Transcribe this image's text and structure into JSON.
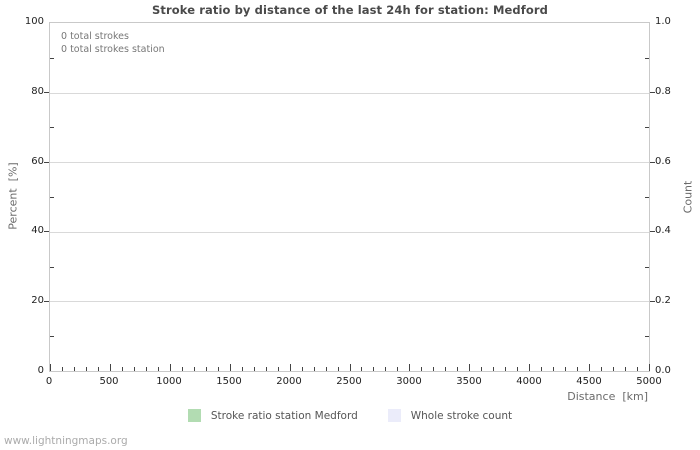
{
  "site": {
    "watermark": "www.lightningmaps.org"
  },
  "chart_data": {
    "type": "line",
    "title": "Stroke ratio by distance of the last 24h for station: Medford",
    "annotations": [
      "0 total strokes",
      "0 total strokes station"
    ],
    "grid": "horizontal-only",
    "legend_position": "bottom-center",
    "x_axis": {
      "label": "Distance  [km]",
      "min": 0,
      "max": 5000,
      "major_ticks": [
        0,
        500,
        1000,
        1500,
        2000,
        2500,
        3000,
        3500,
        4000,
        4500,
        5000
      ],
      "minor_step": 100
    },
    "y_axis_left": {
      "label": "Percent  [%]",
      "min": 0,
      "max": 100,
      "major_ticks": [
        0,
        20,
        40,
        60,
        80,
        100
      ],
      "minor_ticks": [
        10,
        30,
        50,
        70,
        90
      ]
    },
    "y_axis_right": {
      "label": "Count",
      "min": 0.0,
      "max": 1.0,
      "major_tick_labels": [
        "0.0",
        "0.2",
        "0.4",
        "0.6",
        "0.8",
        "1.0"
      ],
      "major_tick_values": [
        0,
        0.2,
        0.4,
        0.6,
        0.8,
        1.0
      ],
      "minor_ticks": [
        0.1,
        0.3,
        0.5,
        0.7,
        0.9
      ]
    },
    "series": [
      {
        "name": "Stroke ratio station Medford",
        "color": "#b2dcb2",
        "axis": "left",
        "x": [],
        "values": []
      },
      {
        "name": "Whole stroke count",
        "color": "#ebecfa",
        "axis": "right",
        "x": [],
        "values": []
      }
    ],
    "totals": {
      "total_strokes": 0,
      "total_strokes_station": 0
    }
  },
  "legend": {
    "items": [
      {
        "label": "Stroke ratio station Medford",
        "color": "#b2dcb2"
      },
      {
        "label": "Whole stroke count",
        "color": "#ebecfa"
      }
    ]
  }
}
